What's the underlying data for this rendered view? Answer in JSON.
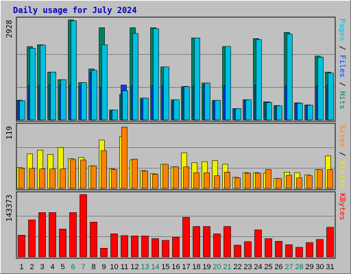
{
  "chart_data": {
    "type": "bar",
    "title": "Daily usage for July 2024",
    "days": [
      "1",
      "2",
      "3",
      "4",
      "5",
      "6",
      "7",
      "8",
      "9",
      "10",
      "11",
      "12",
      "13",
      "14",
      "15",
      "16",
      "17",
      "18",
      "19",
      "20",
      "21",
      "22",
      "23",
      "24",
      "25",
      "26",
      "27",
      "28",
      "29",
      "30",
      "31"
    ],
    "weekend_days": [
      "6",
      "7",
      "13",
      "14",
      "20",
      "21",
      "27",
      "28"
    ],
    "panels": [
      {
        "max_label": "2928",
        "ymax": 2928,
        "legend": [
          {
            "text": "Pages",
            "color": "#00c0e0"
          },
          {
            "text": " / ",
            "color": "#000000"
          },
          {
            "text": "Files",
            "color": "#0040ff"
          },
          {
            "text": " / ",
            "color": "#000000"
          },
          {
            "text": "Hits",
            "color": "#008060"
          }
        ],
        "series": [
          {
            "name": "Hits",
            "color": "#008060",
            "values": [
              580,
              2145,
              2200,
              1400,
              1180,
              2928,
              1090,
              1490,
              2700,
              290,
              750,
              2700,
              640,
              2700,
              1550,
              590,
              970,
              2400,
              1080,
              570,
              2150,
              330,
              590,
              2380,
              530,
              420,
              2560,
              500,
              440,
              1870,
              1400
            ]
          },
          {
            "name": "Files",
            "color": "#0040ff",
            "values": [
              550,
              1010,
              1000,
              1020,
              1020,
              1020,
              1000,
              1390,
              950,
              250,
              1020,
              1000,
              590,
              1000,
              1000,
              550,
              980,
              1000,
              1020,
              560,
              1000,
              320,
              580,
              1020,
              520,
              400,
              1000,
              490,
              420,
              1000,
              1020
            ]
          },
          {
            "name": "Pages",
            "color": "#00c0e0",
            "values": [
              560,
              2100,
              2190,
              1400,
              1180,
              2900,
              1090,
              1450,
              2200,
              290,
              850,
              2530,
              640,
              2670,
              1550,
              590,
              970,
              2400,
              1080,
              570,
              2150,
              330,
              590,
              2350,
              510,
              410,
              2510,
              490,
              430,
              1840,
              1370
            ]
          }
        ]
      },
      {
        "max_label": "119",
        "ymax": 119,
        "legend": [
          {
            "text": "Sites",
            "color": "#ff8000"
          },
          {
            "text": " / ",
            "color": "#000000"
          },
          {
            "text": "Visits",
            "color": "#f0f000"
          }
        ],
        "series": [
          {
            "name": "Visits",
            "color": "#f0f000",
            "values": [
              40,
              66,
              73,
              65,
              78,
              57,
              59,
              43,
              92,
              37,
              99,
              54,
              34,
              28,
              46,
              41,
              68,
              49,
              51,
              53,
              46,
              21,
              30,
              30,
              29,
              19,
              31,
              30,
              26,
              36,
              62
            ]
          },
          {
            "name": "Sites",
            "color": "#ff8000",
            "values": [
              38,
              38,
              37,
              37,
              37,
              55,
              54,
              43,
              72,
              36,
              117,
              56,
              33,
              27,
              46,
              41,
              41,
              30,
              30,
              24,
              31,
              20,
              29,
              29,
              36,
              19,
              25,
              20,
              24,
              36,
              36
            ]
          }
        ]
      },
      {
        "max_label": "143373",
        "ymax": 143373,
        "legend": [
          {
            "text": "KBytes",
            "color": "#ff0000"
          }
        ],
        "series": [
          {
            "name": "KBytes",
            "color": "#ff0000",
            "values": [
              50000,
              85000,
              102000,
              102000,
              64000,
              102000,
              143373,
              80000,
              20000,
              53000,
              49000,
              48000,
              48000,
              42000,
              38000,
              45000,
              91000,
              70000,
              70000,
              53000,
              70000,
              27000,
              35000,
              62000,
              42000,
              36000,
              28000,
              22000,
              33000,
              40000,
              68000
            ]
          }
        ]
      }
    ]
  }
}
